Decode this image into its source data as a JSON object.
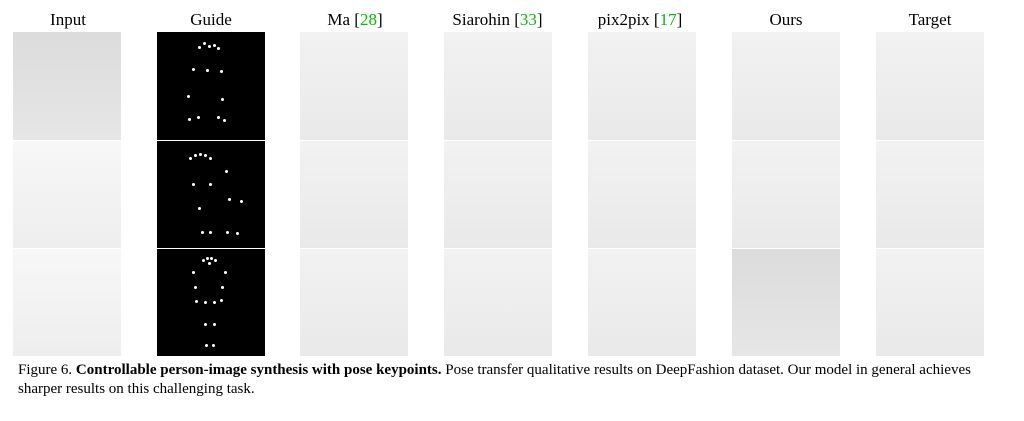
{
  "columns": [
    {
      "label": "Input",
      "cite": ""
    },
    {
      "label": "Guide",
      "cite": ""
    },
    {
      "label": "Ma",
      "cite": "28"
    },
    {
      "label": "Siarohin",
      "cite": "33"
    },
    {
      "label": "pix2pix",
      "cite": "17"
    },
    {
      "label": "Ours",
      "cite": ""
    },
    {
      "label": "Target",
      "cite": ""
    }
  ],
  "caption": {
    "prefix": "Figure 6. ",
    "bold": "Controllable person-image synthesis with pose keypoints.",
    "rest": " Pose transfer qualitative results on DeepFashion dataset. Our model in general achieves sharper results on this challenging task."
  }
}
